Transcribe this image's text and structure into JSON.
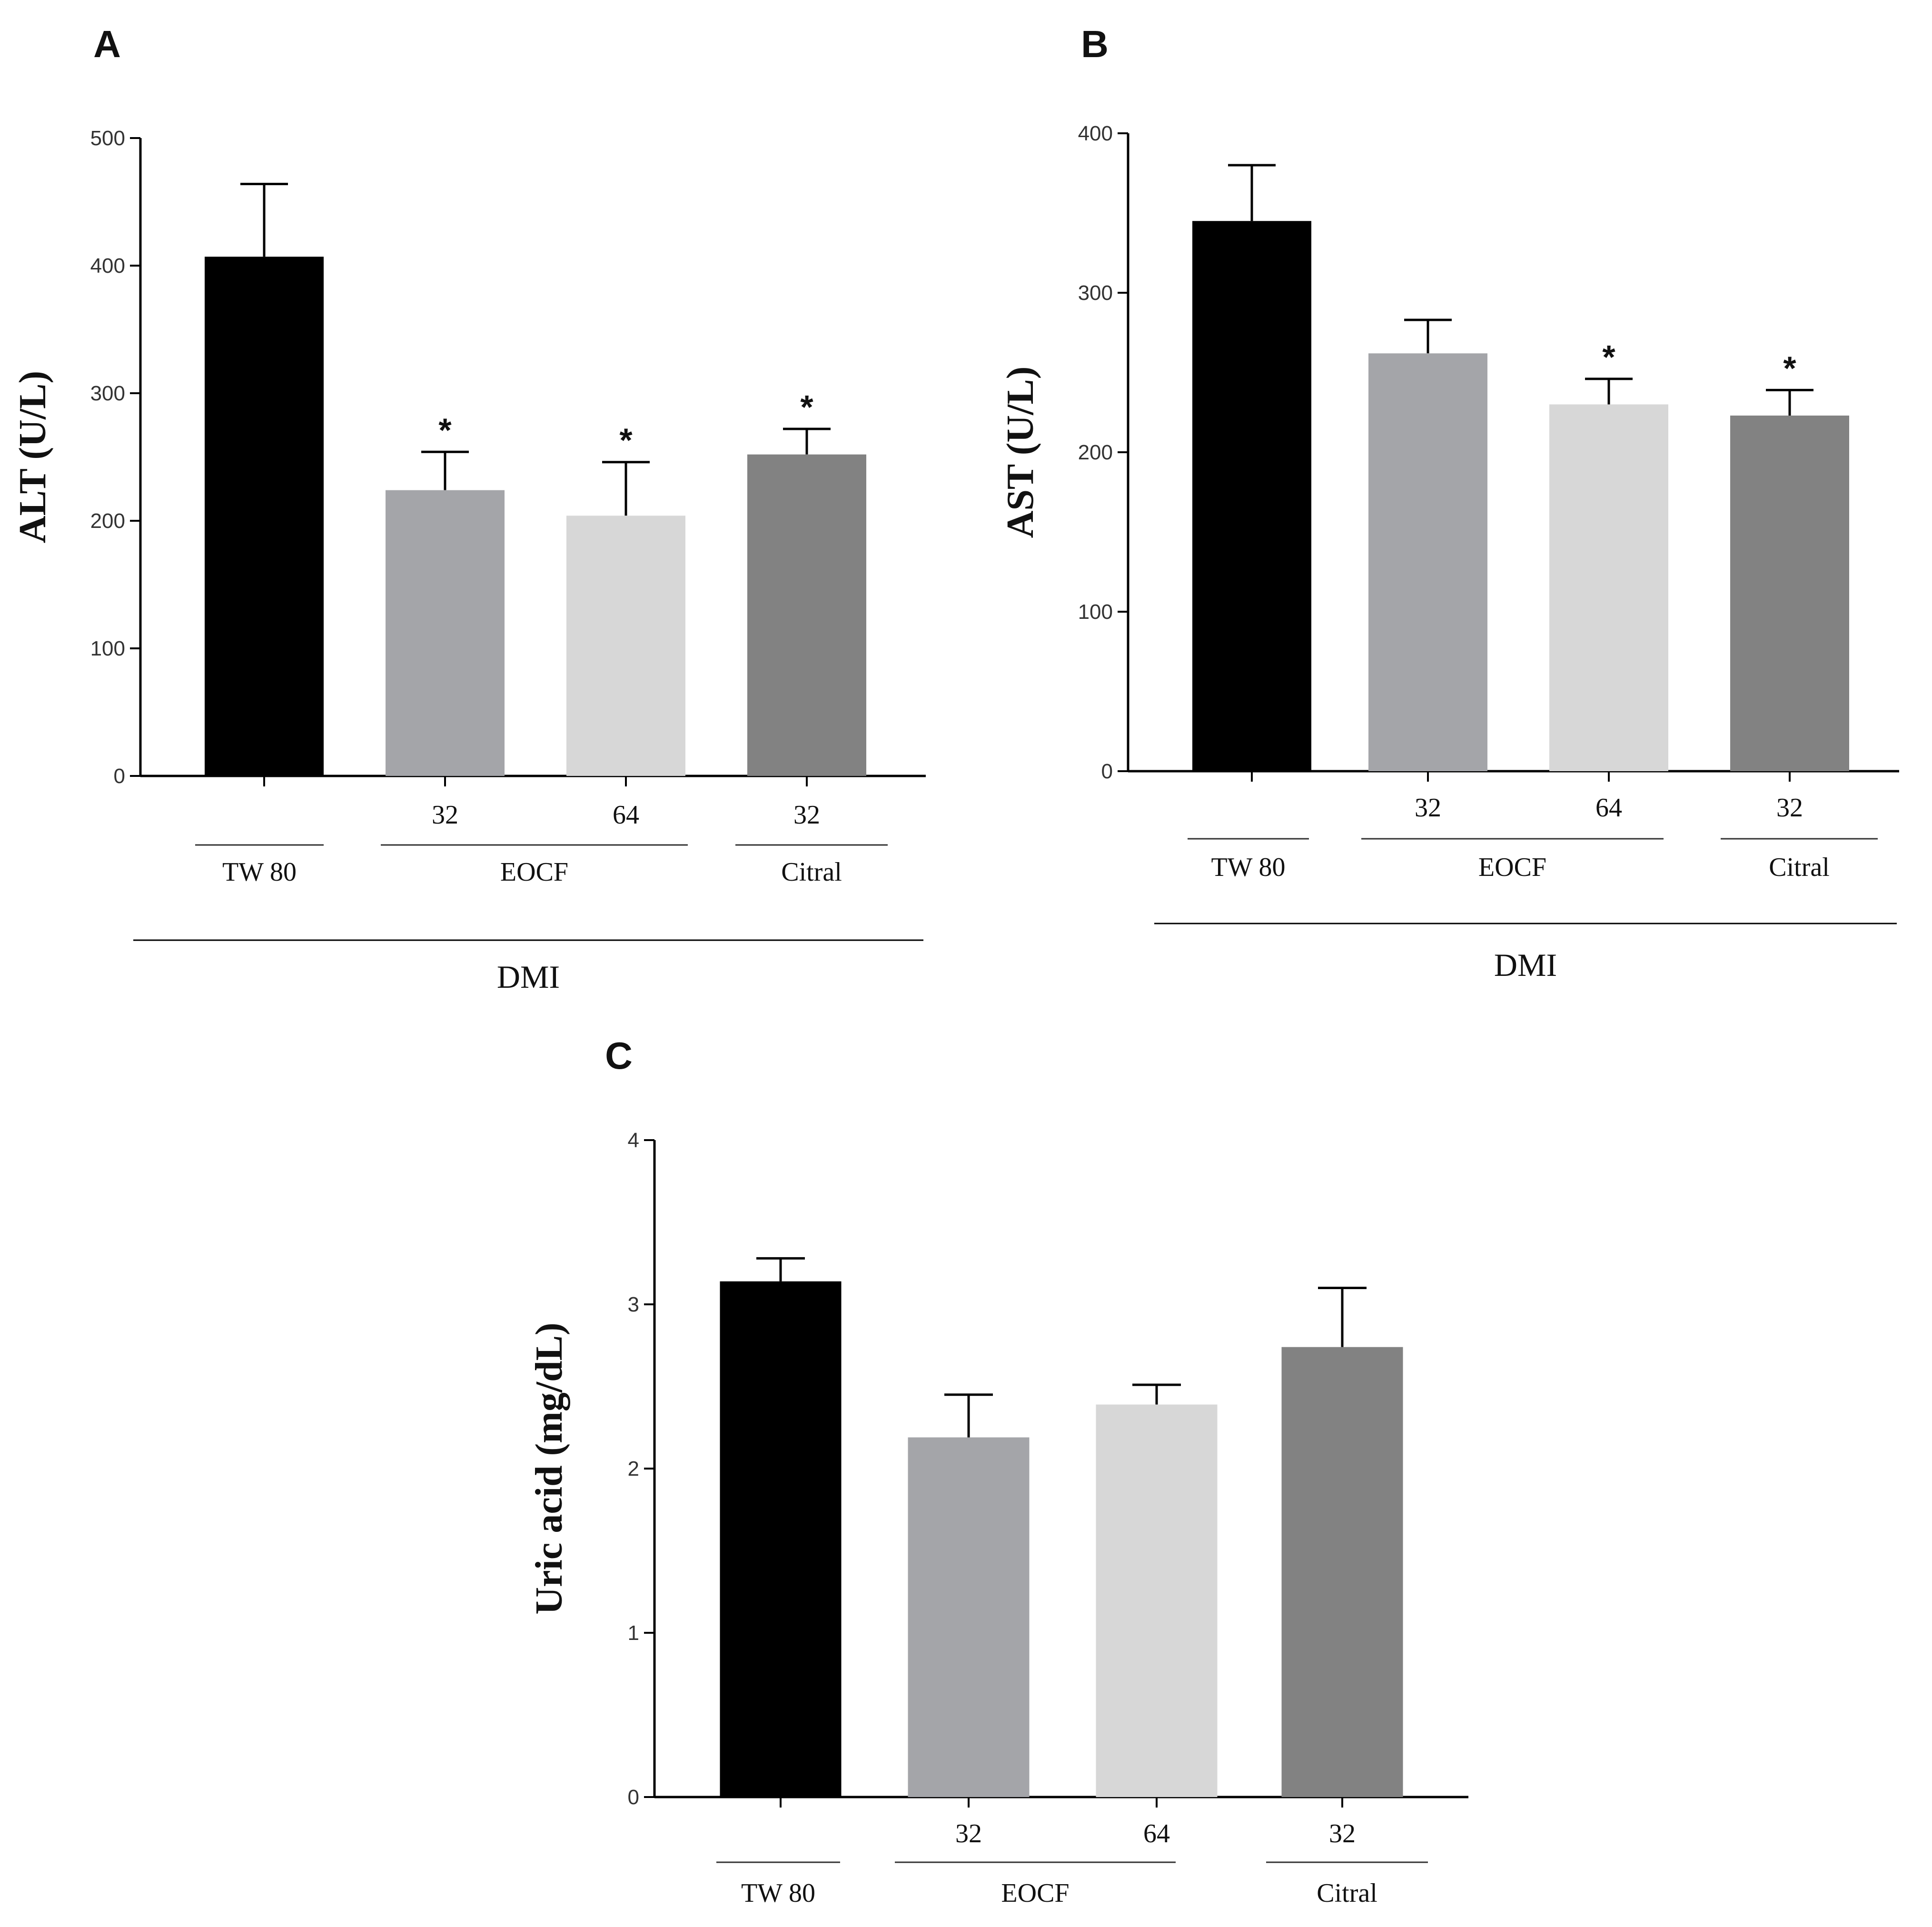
{
  "colors": {
    "tw80": "#000000",
    "eocf32": "#a4a5a9",
    "eocf64": "#d7d7d7",
    "citral32": "#828282",
    "axis": "#000000"
  },
  "chart_data": [
    {
      "panel": "A",
      "type": "bar",
      "ylabel": "ALT (U/L)",
      "ylim": [
        0,
        500
      ],
      "yticks": [
        "0",
        "100",
        "200",
        "300",
        "400",
        "500"
      ],
      "categories": [
        "",
        "32",
        "64",
        "32"
      ],
      "values": [
        407,
        224,
        204,
        252
      ],
      "errors": [
        57,
        30,
        42,
        20
      ],
      "significance": [
        "",
        "*",
        "*",
        "*"
      ],
      "groups": [
        {
          "label": "TW 80",
          "span": [
            0,
            0
          ]
        },
        {
          "label": "EOCF",
          "span": [
            1,
            2
          ]
        },
        {
          "label": "Citral",
          "span": [
            3,
            3
          ]
        }
      ],
      "supergroup": "DMI"
    },
    {
      "panel": "B",
      "type": "bar",
      "ylabel": "AST (U/L)",
      "ylim": [
        0,
        400
      ],
      "yticks": [
        "0",
        "100",
        "200",
        "300",
        "400"
      ],
      "categories": [
        "",
        "32",
        "64",
        "32"
      ],
      "values": [
        345,
        262,
        230,
        223
      ],
      "errors": [
        35,
        21,
        16,
        16
      ],
      "significance": [
        "",
        "",
        "*",
        "*"
      ],
      "groups": [
        {
          "label": "TW 80",
          "span": [
            0,
            0
          ]
        },
        {
          "label": "EOCF",
          "span": [
            1,
            2
          ]
        },
        {
          "label": "Citral",
          "span": [
            3,
            3
          ]
        }
      ],
      "supergroup": "DMI"
    },
    {
      "panel": "C",
      "type": "bar",
      "ylabel": "Uric acid (mg/dL)",
      "ylim": [
        0,
        4
      ],
      "yticks": [
        "0",
        "1",
        "2",
        "3",
        "4"
      ],
      "categories": [
        "",
        "32",
        "64",
        "32"
      ],
      "values": [
        3.14,
        2.19,
        2.39,
        2.74
      ],
      "errors": [
        0.14,
        0.26,
        0.12,
        0.36
      ],
      "significance": [
        "",
        "",
        "",
        ""
      ],
      "groups": [
        {
          "label": "TW 80",
          "span": [
            0,
            0
          ]
        },
        {
          "label": "EOCF",
          "span": [
            1,
            2
          ]
        },
        {
          "label": "Citral",
          "span": [
            3,
            3
          ]
        }
      ],
      "supergroup": ""
    }
  ]
}
